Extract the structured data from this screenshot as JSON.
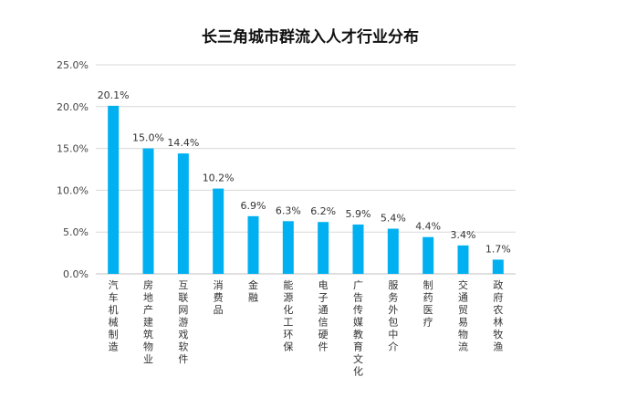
{
  "chart_data": {
    "type": "bar",
    "title": "长三角城市群流入人才行业分布",
    "xlabel": "",
    "ylabel": "",
    "ylim": [
      0,
      25
    ],
    "yticks": [
      "0.0%",
      "5.0%",
      "10.0%",
      "15.0%",
      "20.0%",
      "25.0%"
    ],
    "grid": true,
    "legend": "none",
    "bar_color": "#00b0f0",
    "categories": [
      "汽车机械制造",
      "房地产建筑物业",
      "互联网游戏软件",
      "消费品",
      "金融",
      "能源化工环保",
      "电子通信硬件",
      "广告传媒教育文化",
      "服务外包中介",
      "制药医疗",
      "交通贸易物流",
      "政府农林牧渔"
    ],
    "values": [
      20.1,
      15.0,
      14.4,
      10.2,
      6.9,
      6.3,
      6.2,
      5.9,
      5.4,
      4.4,
      3.4,
      1.7
    ],
    "data_labels": [
      "20.1%",
      "15.0%",
      "14.4%",
      "10.2%",
      "6.9%",
      "6.3%",
      "6.2%",
      "5.9%",
      "5.4%",
      "4.4%",
      "3.4%",
      "1.7%"
    ]
  }
}
